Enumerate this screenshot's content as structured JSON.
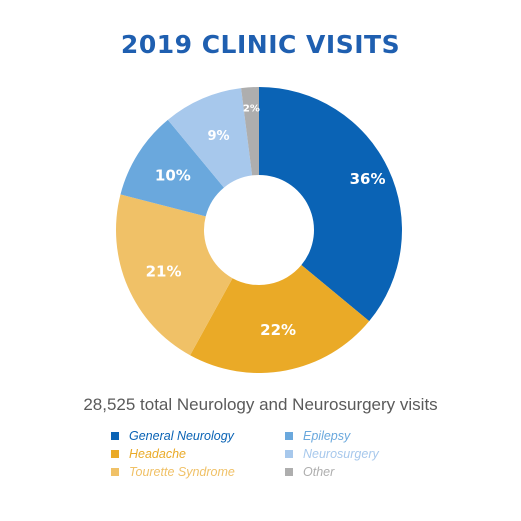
{
  "chart_data": {
    "type": "pie",
    "title": "2019 CLINIC VISITS",
    "subtitle": "28,525 total Neurology and Neurosurgery visits",
    "slices": [
      {
        "name": "General Neurology",
        "value": 36,
        "label": "36%",
        "color": "#0a63b5"
      },
      {
        "name": "Headache",
        "value": 22,
        "label": "22%",
        "color": "#eaaa27"
      },
      {
        "name": "Tourette Syndrome",
        "value": 21,
        "label": "21%",
        "color": "#f0c167"
      },
      {
        "name": "Epilepsy",
        "value": 10,
        "label": "10%",
        "color": "#6aa8dd"
      },
      {
        "name": "Neurosurgery",
        "value": 9,
        "label": "9%",
        "color": "#a7c8ec"
      },
      {
        "name": "Other",
        "value": 2,
        "label": "2%",
        "color": "#aeaeae"
      }
    ],
    "legend": [
      {
        "label": "General Neurology",
        "color": "#0a63b5"
      },
      {
        "label": "Headache",
        "color": "#eaaa27"
      },
      {
        "label": "Tourette Syndrome",
        "color": "#f0c167"
      },
      {
        "label": "Epilepsy",
        "color": "#6aa8dd"
      },
      {
        "label": "Neurosurgery",
        "color": "#a7c8ec"
      },
      {
        "label": "Other",
        "color": "#aeaeae"
      }
    ]
  }
}
